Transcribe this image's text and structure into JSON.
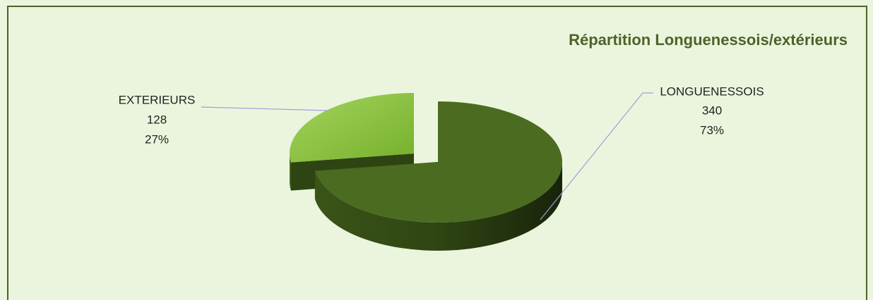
{
  "chart_data": {
    "type": "pie3d",
    "title": "Répartition Longuenessois/extérieurs",
    "categories": [
      "LONGUENESSOIS",
      "EXTERIEURS"
    ],
    "values": [
      340,
      128
    ],
    "percentages": [
      73,
      27
    ],
    "percentage_labels": [
      "73%",
      "27%"
    ],
    "colors": [
      "#4b6b20",
      "#8cc63f"
    ]
  }
}
